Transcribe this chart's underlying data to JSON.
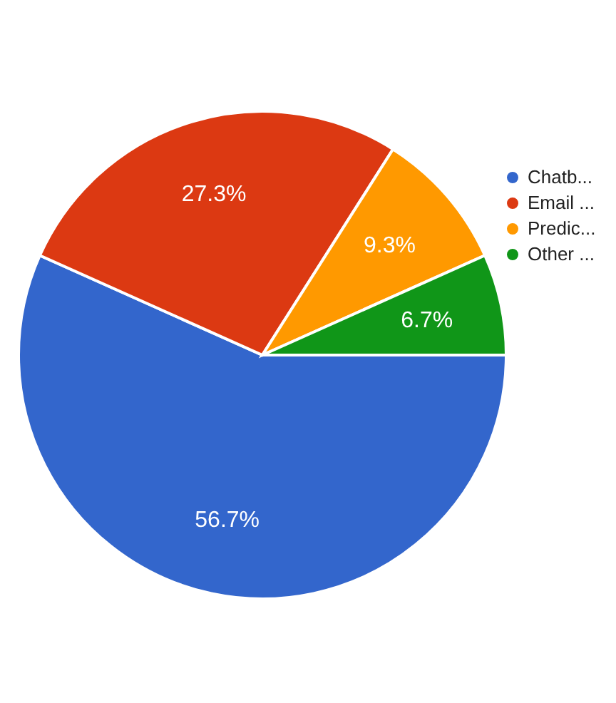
{
  "chart_data": {
    "type": "pie",
    "categories": [
      "Chatb...",
      "Email ...",
      "Predic...",
      "Other ..."
    ],
    "values": [
      56.7,
      27.3,
      9.3,
      6.7
    ],
    "colors": [
      "#3366cc",
      "#dc3912",
      "#ff9900",
      "#109618"
    ],
    "value_labels": [
      "56.7%",
      "27.3%",
      "9.3%",
      "6.7%"
    ],
    "legend": "top right"
  }
}
